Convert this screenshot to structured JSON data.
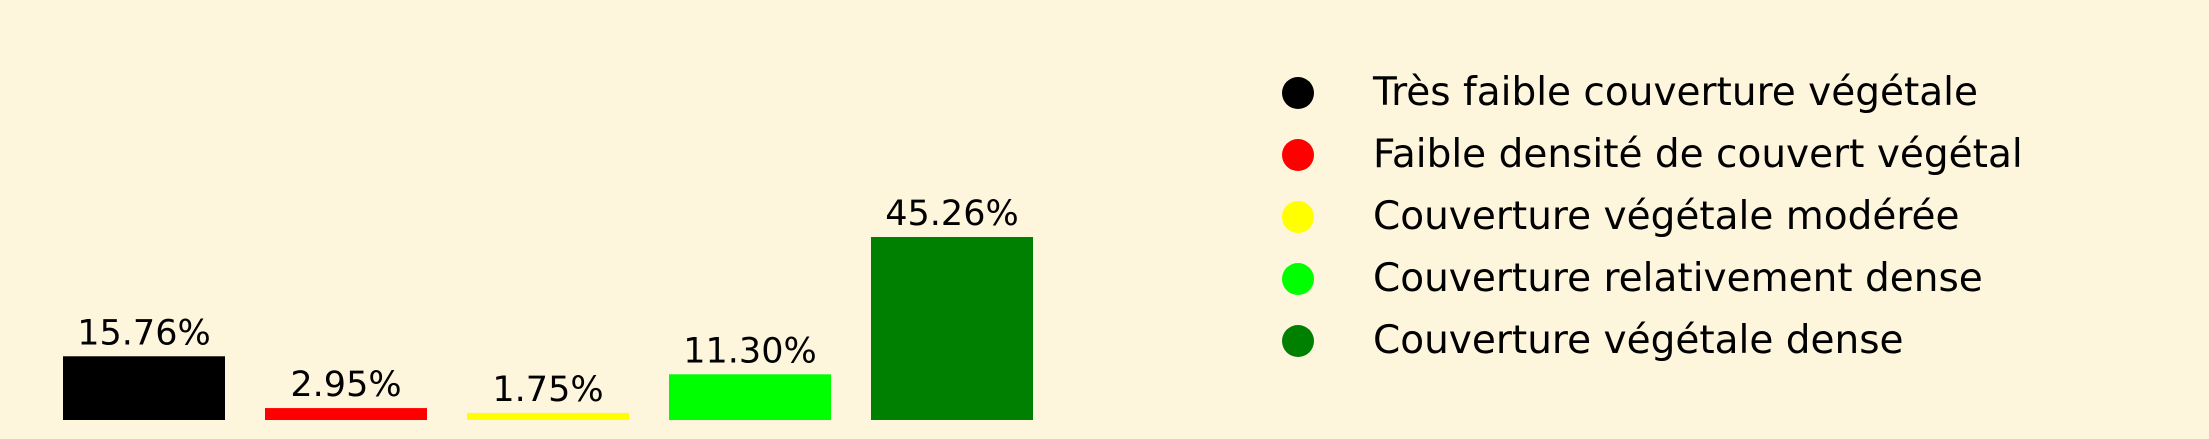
{
  "chart_data": {
    "type": "bar",
    "categories": [
      "Très faible couverture végétale",
      "Faible densité de couvert végétal",
      "Couverture végétale modérée",
      "Couverture relativement dense",
      "Couverture végétale dense"
    ],
    "values": [
      15.76,
      2.95,
      1.75,
      11.3,
      45.26
    ],
    "data_labels": [
      "15.76%",
      "2.95%",
      "1.75%",
      "11.30%",
      "45.26%"
    ],
    "colors": [
      "#000000",
      "#ff0000",
      "#ffff00",
      "#00ff00",
      "#008000"
    ],
    "background": "#fdf5dc",
    "ylim": [
      0,
      45.26
    ],
    "grid": false,
    "legend_position": "right",
    "legend_marker_icon": "circle-icon",
    "title": "",
    "xlabel": "",
    "ylabel": ""
  }
}
